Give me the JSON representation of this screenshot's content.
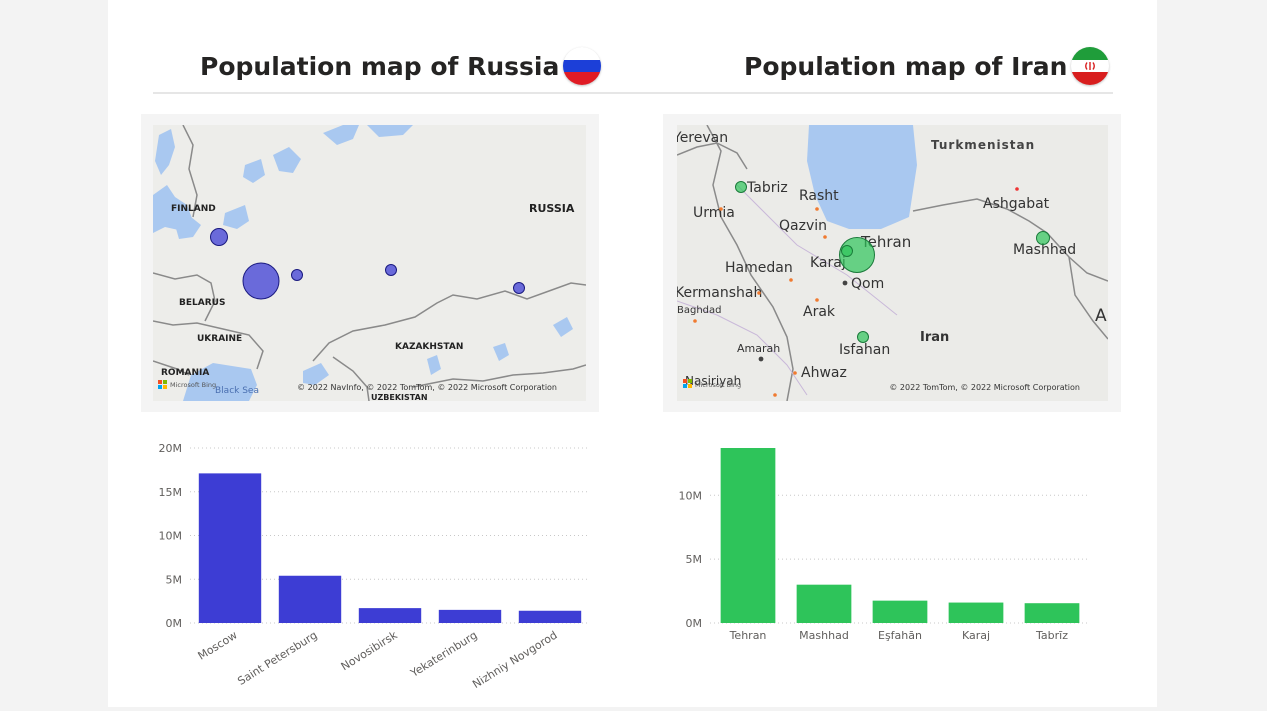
{
  "titles": {
    "russia": "Population map of Russia",
    "iran": "Population map of Iran"
  },
  "flags": {
    "russia": [
      "#ffffff",
      "#1c3fd8",
      "#e01b24"
    ],
    "iran": [
      "#1f9d3a",
      "#ffffff",
      "#d81e1e"
    ],
    "iran_emblem_color": "#d81e1e"
  },
  "maps": {
    "russia": {
      "bubble_color": "#3d3dd4",
      "labels": [
        "FINLAND",
        "RUSSIA",
        "BELARUS",
        "UKRAINE",
        "KAZAKHSTAN",
        "ROMANIA",
        "Black Sea",
        "UZBEKISTAN"
      ],
      "attribution": "© 2022 NavInfo, © 2022 TomTom, © 2022 Microsoft Corporation",
      "bing_logo": "Microsoft Bing"
    },
    "iran": {
      "bubble_color": "#2ec45a",
      "labels": {
        "turkmenistan": "Turkmenistan",
        "yerevan": "Yerevan",
        "tabriz": "Tabriz",
        "rasht": "Rasht",
        "urmia": "Urmia",
        "qazvin": "Qazvin",
        "ashgabat": "Ashgabat",
        "tehran": "Tehran",
        "mashhad": "Mashhad",
        "hamedan": "Hamedan",
        "karaj": "Karaj",
        "qom": "Qom",
        "kermanshah": "Kermanshah",
        "baghdad": "Baghdad",
        "arak": "Arak",
        "iran": "Iran",
        "amarah": "Amarah",
        "isfahan": "Isfahan",
        "ahwaz": "Ahwaz",
        "nasiriyah": "Nasiriyah",
        "edge_a": "A"
      },
      "attribution": "© 2022 TomTom, © 2022 Microsoft Corporation",
      "bing_logo": "Microsoft Bing"
    }
  },
  "chart_data": [
    {
      "type": "bar",
      "categories": [
        "Moscow",
        "Saint Petersburg",
        "Novosibirsk",
        "Yekaterinburg",
        "Nizhniy Novgorod"
      ],
      "values": [
        17100000,
        5400000,
        1700000,
        1500000,
        1400000
      ],
      "ylim": [
        0,
        20000000
      ],
      "yticks": [
        0,
        5000000,
        10000000,
        15000000,
        20000000
      ],
      "ytick_labels": [
        "0M",
        "5M",
        "10M",
        "15M",
        "20M"
      ],
      "color": "#3d3dd4",
      "xlabel_rotation": "angled",
      "grid": true
    },
    {
      "type": "bar",
      "categories": [
        "Tehran",
        "Mashhad",
        "Eşfahān",
        "Karaj",
        "Tabrīz"
      ],
      "values": [
        13700000,
        3000000,
        1750000,
        1600000,
        1550000
      ],
      "ylim": [
        0,
        13700000
      ],
      "yticks": [
        0,
        5000000,
        10000000
      ],
      "ytick_labels": [
        "0M",
        "5M",
        "10M"
      ],
      "color": "#2ec45a",
      "xlabel_rotation": "horizontal",
      "grid": true
    }
  ]
}
